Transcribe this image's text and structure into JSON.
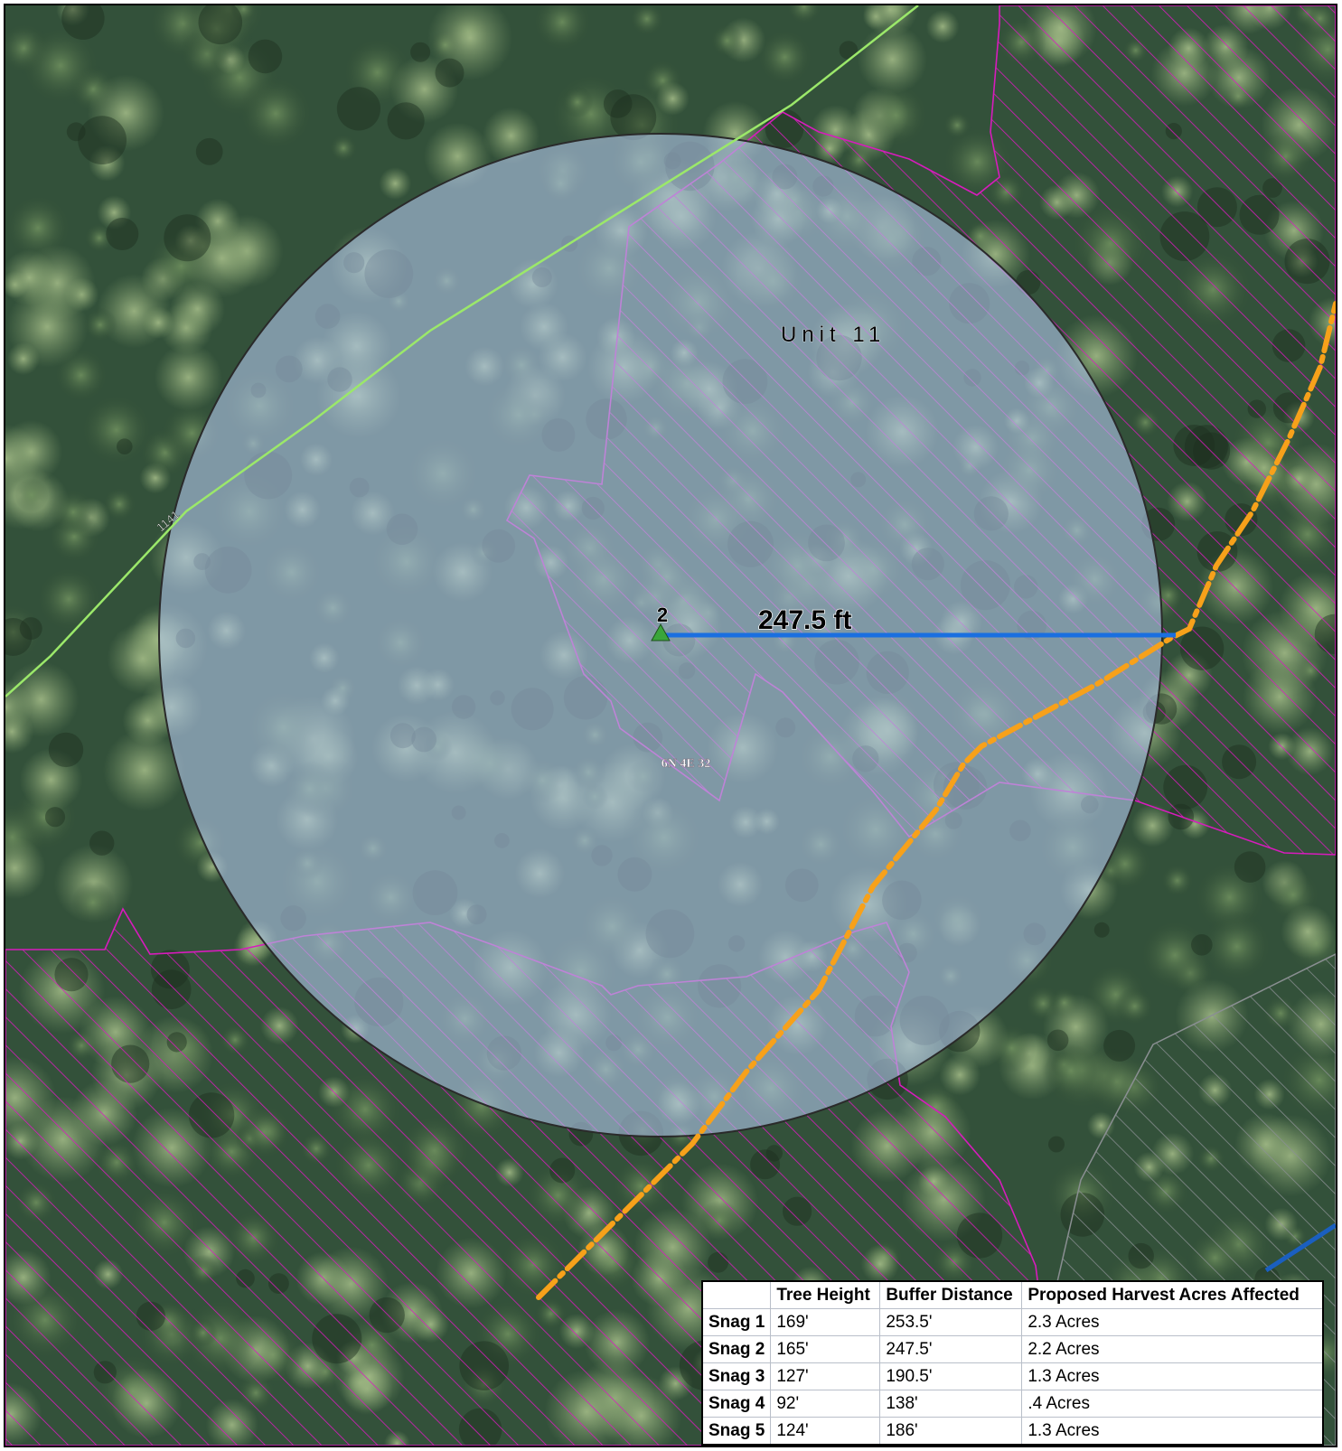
{
  "map": {
    "unit_label": "Unit   11",
    "distance_label": "247.5 ft",
    "point_label": "2",
    "road_label": "1141",
    "section_label": "6N 4E 32",
    "colors": {
      "buffer_fill": "#aec4e6",
      "hatch": "#d81bbd",
      "measure_line": "#1a6fe0",
      "trail": "#f7a11a",
      "road": "#9be86a",
      "point_marker": "#3aa63a",
      "forest_dark": "#27402c",
      "forest_light": "#6e8f5e"
    }
  },
  "table": {
    "headers": [
      "",
      "Tree Height",
      "Buffer Distance",
      "Proposed Harvest Acres Affected"
    ],
    "rows": [
      [
        "Snag 1",
        "169'",
        "253.5'",
        "2.3 Acres"
      ],
      [
        "Snag 2",
        "165'",
        "247.5'",
        "2.2 Acres"
      ],
      [
        "Snag 3",
        "127'",
        "190.5'",
        "1.3 Acres"
      ],
      [
        "Snag 4",
        "92'",
        "138'",
        ".4 Acres"
      ],
      [
        "Snag 5",
        "124'",
        "186'",
        "1.3 Acres"
      ]
    ]
  }
}
